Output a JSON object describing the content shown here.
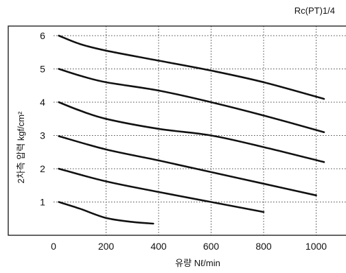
{
  "chart_data": {
    "type": "line",
    "corner_label": "Rc(PT)1/4",
    "xlabel": "유량 Nℓ/min",
    "ylabel": "2차측 압력 kgf/cm²",
    "xlim": [
      0,
      1120
    ],
    "ylim": [
      0,
      7.0
    ],
    "x_ticks": [
      0,
      200,
      400,
      600,
      800,
      1000
    ],
    "y_ticks": [
      1,
      2,
      3,
      4,
      5,
      6
    ],
    "x_tick_labels": [
      "0",
      "200",
      "400",
      "600",
      "800",
      "1000"
    ],
    "y_tick_labels": [
      "1",
      "2",
      "3",
      "4",
      "5",
      "6"
    ],
    "grid": true,
    "series": [
      {
        "x": [
          20,
          100,
          200,
          300,
          380
        ],
        "y": [
          1.0,
          0.8,
          0.52,
          0.4,
          0.35
        ]
      },
      {
        "x": [
          20,
          200,
          400,
          600,
          800
        ],
        "y": [
          2.0,
          1.62,
          1.3,
          1.0,
          0.7
        ]
      },
      {
        "x": [
          20,
          200,
          400,
          600,
          800,
          1000
        ],
        "y": [
          2.98,
          2.58,
          2.25,
          1.9,
          1.55,
          1.2
        ]
      },
      {
        "x": [
          20,
          100,
          200,
          400,
          600,
          800,
          1030
        ],
        "y": [
          4.0,
          3.75,
          3.5,
          3.2,
          3.0,
          2.65,
          2.2
        ]
      },
      {
        "x": [
          20,
          100,
          200,
          400,
          600,
          800,
          1030
        ],
        "y": [
          5.0,
          4.8,
          4.6,
          4.35,
          4.0,
          3.6,
          3.1
        ]
      },
      {
        "x": [
          20,
          100,
          200,
          400,
          600,
          800,
          1030
        ],
        "y": [
          6.0,
          5.75,
          5.55,
          5.25,
          4.95,
          4.6,
          4.1
        ]
      }
    ]
  }
}
